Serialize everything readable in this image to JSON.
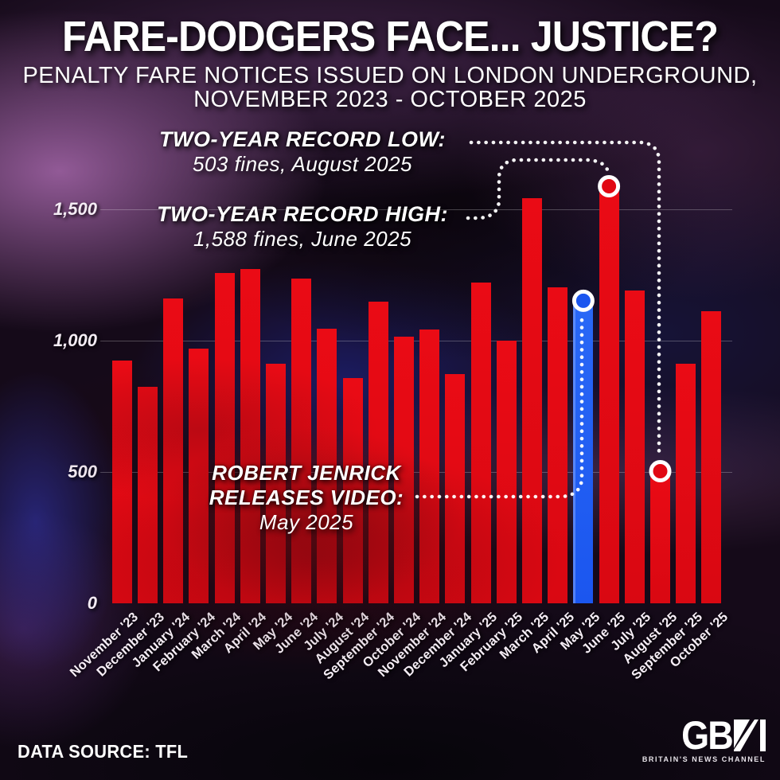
{
  "chart_data": {
    "type": "bar",
    "title": "FARE-DODGERS FACE... JUSTICE?",
    "subtitle_lines": [
      "PENALTY FARE NOTICES ISSUED ON LONDON UNDERGROUND,",
      "NOVEMBER 2023 - OCTOBER 2025"
    ],
    "categories": [
      "November '23",
      "December '23",
      "January '24",
      "February '24",
      "March '24",
      "April '24",
      "May '24",
      "June '24",
      "July '24",
      "August '24",
      "September '24",
      "October '24",
      "November '24",
      "December '24",
      "January '25",
      "February '25",
      "March '25",
      "April '25",
      "May '25",
      "June '25",
      "July '25",
      "August '25",
      "September '25",
      "October '25"
    ],
    "values": [
      925,
      825,
      1160,
      970,
      1258,
      1272,
      911,
      1236,
      1046,
      857,
      1150,
      1016,
      1042,
      873,
      1221,
      1000,
      1541,
      1204,
      1152,
      1588,
      1191,
      503,
      911,
      1113
    ],
    "bar_color": "#e10813",
    "highlight_index": 18,
    "highlight_color": "#1b56ef",
    "ylim": [
      0,
      1750
    ],
    "yticks": [
      {
        "value": 0,
        "label": "0"
      },
      {
        "value": 500,
        "label": "500"
      },
      {
        "value": 1000,
        "label": "1,000"
      },
      {
        "value": 1500,
        "label": "1,500"
      }
    ],
    "grid": "horizontal",
    "xlabel": "",
    "ylabel": "",
    "annotated_points": [
      {
        "category": "June '25",
        "value": 1588,
        "note": "two-year record high"
      },
      {
        "category": "August '25",
        "value": 503,
        "note": "two-year record low"
      },
      {
        "category": "May '25",
        "value": 1152,
        "note": "Robert Jenrick releases video"
      }
    ]
  },
  "annotations": {
    "record_low": {
      "label": "TWO-YEAR RECORD LOW:",
      "detail": "503 fines, August 2025"
    },
    "record_high": {
      "label": "TWO-YEAR RECORD HIGH:",
      "detail": "1,588 fines, June 2025"
    },
    "event": {
      "line1": "ROBERT JENRICK",
      "line2": "RELEASES VIDEO:",
      "line3": "May 2025"
    }
  },
  "footer": {
    "source": "DATA SOURCE: TFL",
    "logo_gb": "GB",
    "logo": "GBN",
    "logo_tagline": "BRITAIN'S NEWS CHANNEL"
  }
}
